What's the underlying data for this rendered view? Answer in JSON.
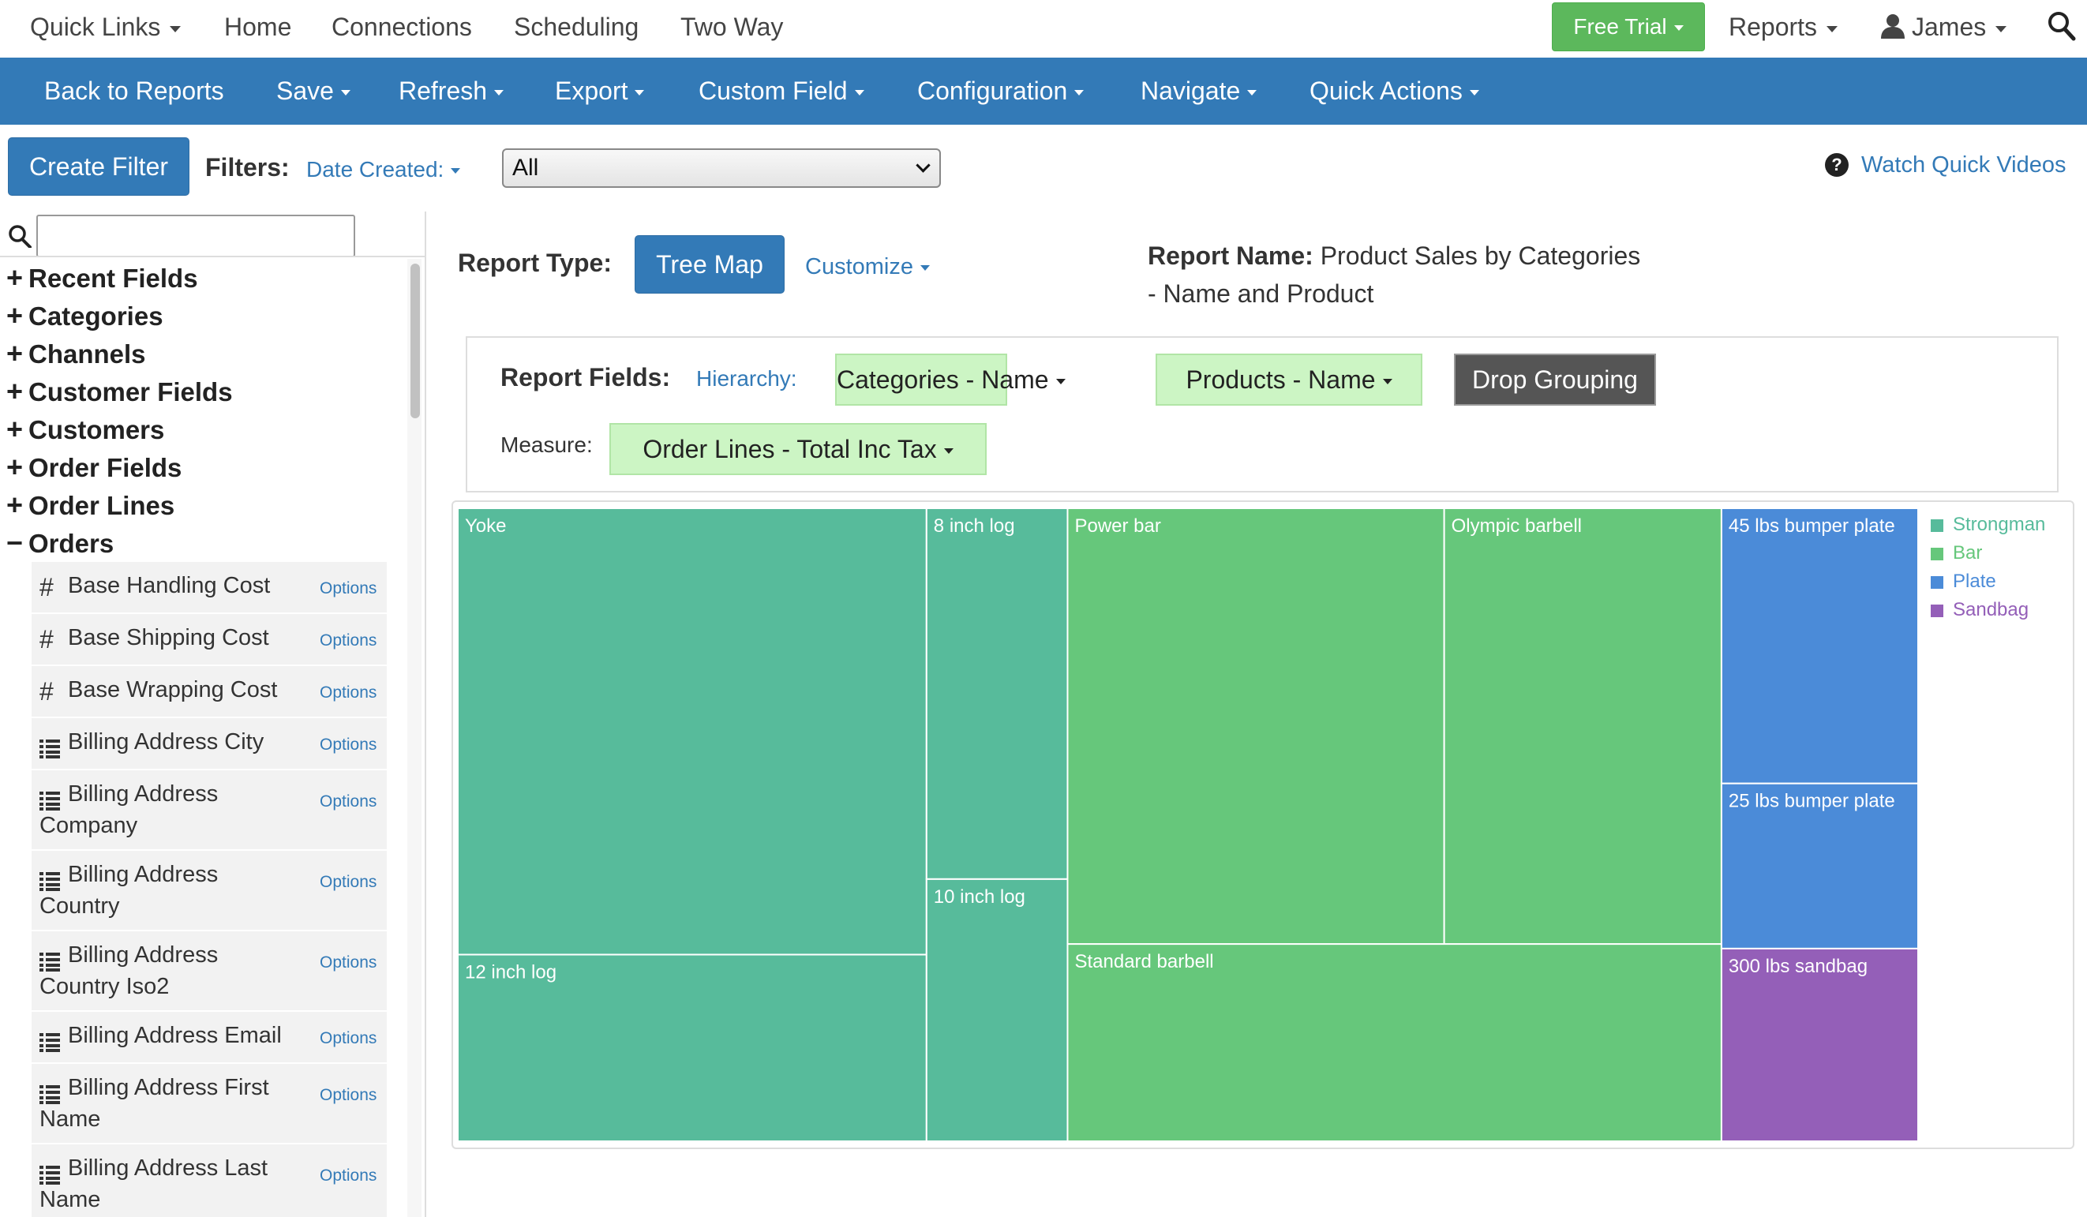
{
  "topnav": {
    "quick_links": "Quick Links",
    "home": "Home",
    "connections": "Connections",
    "scheduling": "Scheduling",
    "two_way": "Two Way",
    "free_trial": "Free Trial",
    "reports": "Reports",
    "user": "James"
  },
  "menubar": {
    "back": "Back to Reports",
    "save": "Save",
    "refresh": "Refresh",
    "export": "Export",
    "custom_field": "Custom Field",
    "configuration": "Configuration",
    "navigate": "Navigate",
    "quick_actions": "Quick Actions"
  },
  "filters": {
    "create_filter": "Create Filter",
    "label": "Filters:",
    "date_created": "Date Created:",
    "select_value": "All",
    "watch_videos": "Watch Quick Videos"
  },
  "sidebar": {
    "search_value": "",
    "groups": [
      {
        "sign": "+",
        "label": "Recent Fields"
      },
      {
        "sign": "+",
        "label": "Categories"
      },
      {
        "sign": "+",
        "label": "Channels"
      },
      {
        "sign": "+",
        "label": "Customer Fields"
      },
      {
        "sign": "+",
        "label": "Customers"
      },
      {
        "sign": "+",
        "label": "Order Fields"
      },
      {
        "sign": "+",
        "label": "Order Lines"
      },
      {
        "sign": "−",
        "label": "Orders"
      }
    ],
    "options_label": "Options",
    "fields": [
      {
        "icon": "hash",
        "line1": "Base Handling Cost",
        "line2": ""
      },
      {
        "icon": "hash",
        "line1": "Base Shipping Cost",
        "line2": ""
      },
      {
        "icon": "hash",
        "line1": "Base Wrapping Cost",
        "line2": ""
      },
      {
        "icon": "list",
        "line1": "Billing Address City",
        "line2": ""
      },
      {
        "icon": "list",
        "line1": "Billing Address",
        "line2": "Company"
      },
      {
        "icon": "list",
        "line1": "Billing Address",
        "line2": "Country"
      },
      {
        "icon": "list",
        "line1": "Billing Address",
        "line2": "Country Iso2"
      },
      {
        "icon": "list",
        "line1": "Billing Address Email",
        "line2": ""
      },
      {
        "icon": "list",
        "line1": "Billing Address First",
        "line2": "Name"
      },
      {
        "icon": "list",
        "line1": "Billing Address Last",
        "line2": "Name"
      }
    ]
  },
  "report": {
    "type_label": "Report Type:",
    "type_value": "Tree Map",
    "customize": "Customize",
    "name_label": "Report Name:",
    "name_value": "Product Sales by Categories - Name and Product",
    "fields_label": "Report Fields:",
    "hierarchy_label": "Hierarchy:",
    "hierarchy_field_1": "Categories - Name",
    "hierarchy_field_2": "Products - Name",
    "drop_grouping": "Drop Grouping",
    "measure_label": "Measure:",
    "measure_value": "Order Lines - Total Inc Tax"
  },
  "chart_data": {
    "type": "treemap",
    "categories": [
      {
        "name": "Strongman",
        "color": "#57bb9b",
        "items": [
          {
            "label": "Yoke",
            "value": 232
          },
          {
            "label": "12 inch log",
            "value": 97
          },
          {
            "label": "8 inch log",
            "value": 58
          },
          {
            "label": "10 inch log",
            "value": 41
          }
        ]
      },
      {
        "name": "Bar",
        "color": "#66c77b",
        "items": [
          {
            "label": "Power bar",
            "value": 182
          },
          {
            "label": "Olympic barbell",
            "value": 134
          },
          {
            "label": "Standard barbell",
            "value": 143
          }
        ]
      },
      {
        "name": "Plate",
        "color": "#4b8bd8",
        "items": [
          {
            "label": "45 lbs bumper plate",
            "value": 60
          },
          {
            "label": "25 lbs bumper plate",
            "value": 36
          }
        ]
      },
      {
        "name": "Sandbag",
        "color": "#945fb8",
        "items": [
          {
            "label": "300 lbs sandbag",
            "value": 42
          }
        ]
      }
    ],
    "legend": [
      "Strongman",
      "Bar",
      "Plate",
      "Sandbag"
    ],
    "legend_position": "top-right",
    "measure": "Order Lines - Total Inc Tax"
  }
}
